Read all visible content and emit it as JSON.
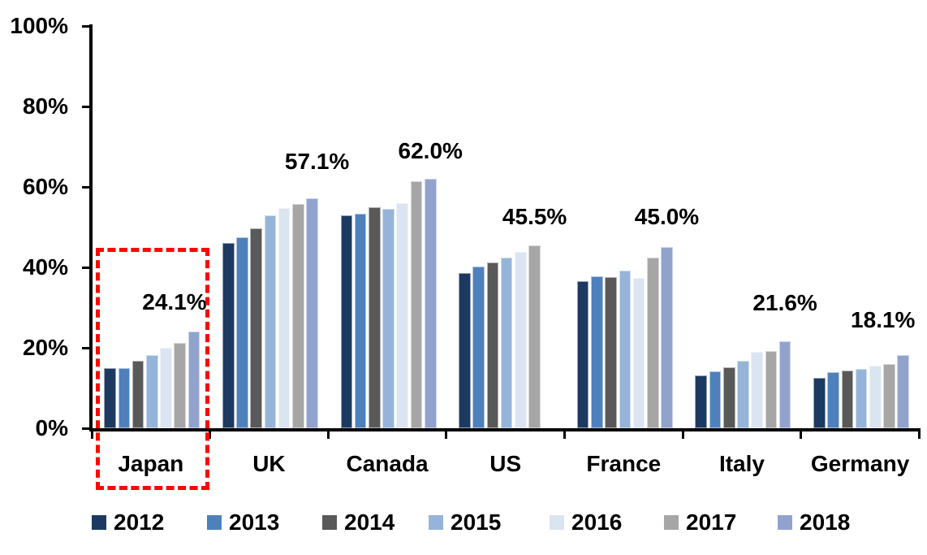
{
  "chart_data": {
    "type": "bar",
    "title": "",
    "categories": [
      "Japan",
      "UK",
      "Canada",
      "US",
      "France",
      "Italy",
      "Germany"
    ],
    "series": [
      {
        "name": "2012",
        "color": "#1c3a61",
        "values": [
          14.9,
          46.1,
          52.9,
          38.5,
          36.5,
          13.1,
          12.6
        ]
      },
      {
        "name": "2013",
        "color": "#4e80bc",
        "values": [
          15.0,
          47.5,
          53.4,
          40.3,
          37.7,
          14.1,
          14.0
        ]
      },
      {
        "name": "2014",
        "color": "#595959",
        "values": [
          16.8,
          49.7,
          54.9,
          41.2,
          37.5,
          15.2,
          14.4
        ]
      },
      {
        "name": "2015",
        "color": "#96b4d9",
        "values": [
          18.2,
          53.0,
          54.5,
          42.4,
          39.2,
          16.8,
          14.8
        ]
      },
      {
        "name": "2016",
        "color": "#dbe5f1",
        "values": [
          19.9,
          54.7,
          56.0,
          43.8,
          37.3,
          19.0,
          15.5
        ]
      },
      {
        "name": "2017",
        "color": "#a6a6a6",
        "values": [
          21.3,
          55.7,
          61.4,
          45.5,
          42.4,
          19.1,
          16.0
        ]
      },
      {
        "name": "2018",
        "color": "#91a3cd",
        "values": [
          24.1,
          57.1,
          62.0,
          null,
          45.0,
          21.6,
          18.1
        ]
      }
    ],
    "data_labels": [
      "24.1%",
      "57.1%",
      "62.0%",
      "45.5%",
      "45.0%",
      "21.6%",
      "18.1%"
    ],
    "y_axis": {
      "tick_labels": [
        "0%",
        "20%",
        "40%",
        "60%",
        "80%",
        "100%"
      ],
      "tick_values": [
        0,
        20,
        40,
        60,
        80,
        100
      ],
      "min": 0,
      "max": 100,
      "grid": false
    },
    "legend": {
      "position": "bottom",
      "entries": [
        "2012",
        "2013",
        "2014",
        "2015",
        "2016",
        "2017",
        "2018"
      ]
    },
    "annotations": [
      {
        "type": "highlight-box",
        "target": "Japan",
        "style": "red-dashed",
        "color": "#fe0606"
      }
    ],
    "layout": {
      "label_dx": [
        -24,
        6,
        0,
        0,
        0,
        0,
        -25
      ],
      "label_gap": [
        21,
        30,
        19,
        20,
        22,
        32,
        28
      ],
      "legend_lefts": [
        113,
        255,
        397,
        528,
        677,
        818,
        958
      ]
    }
  }
}
